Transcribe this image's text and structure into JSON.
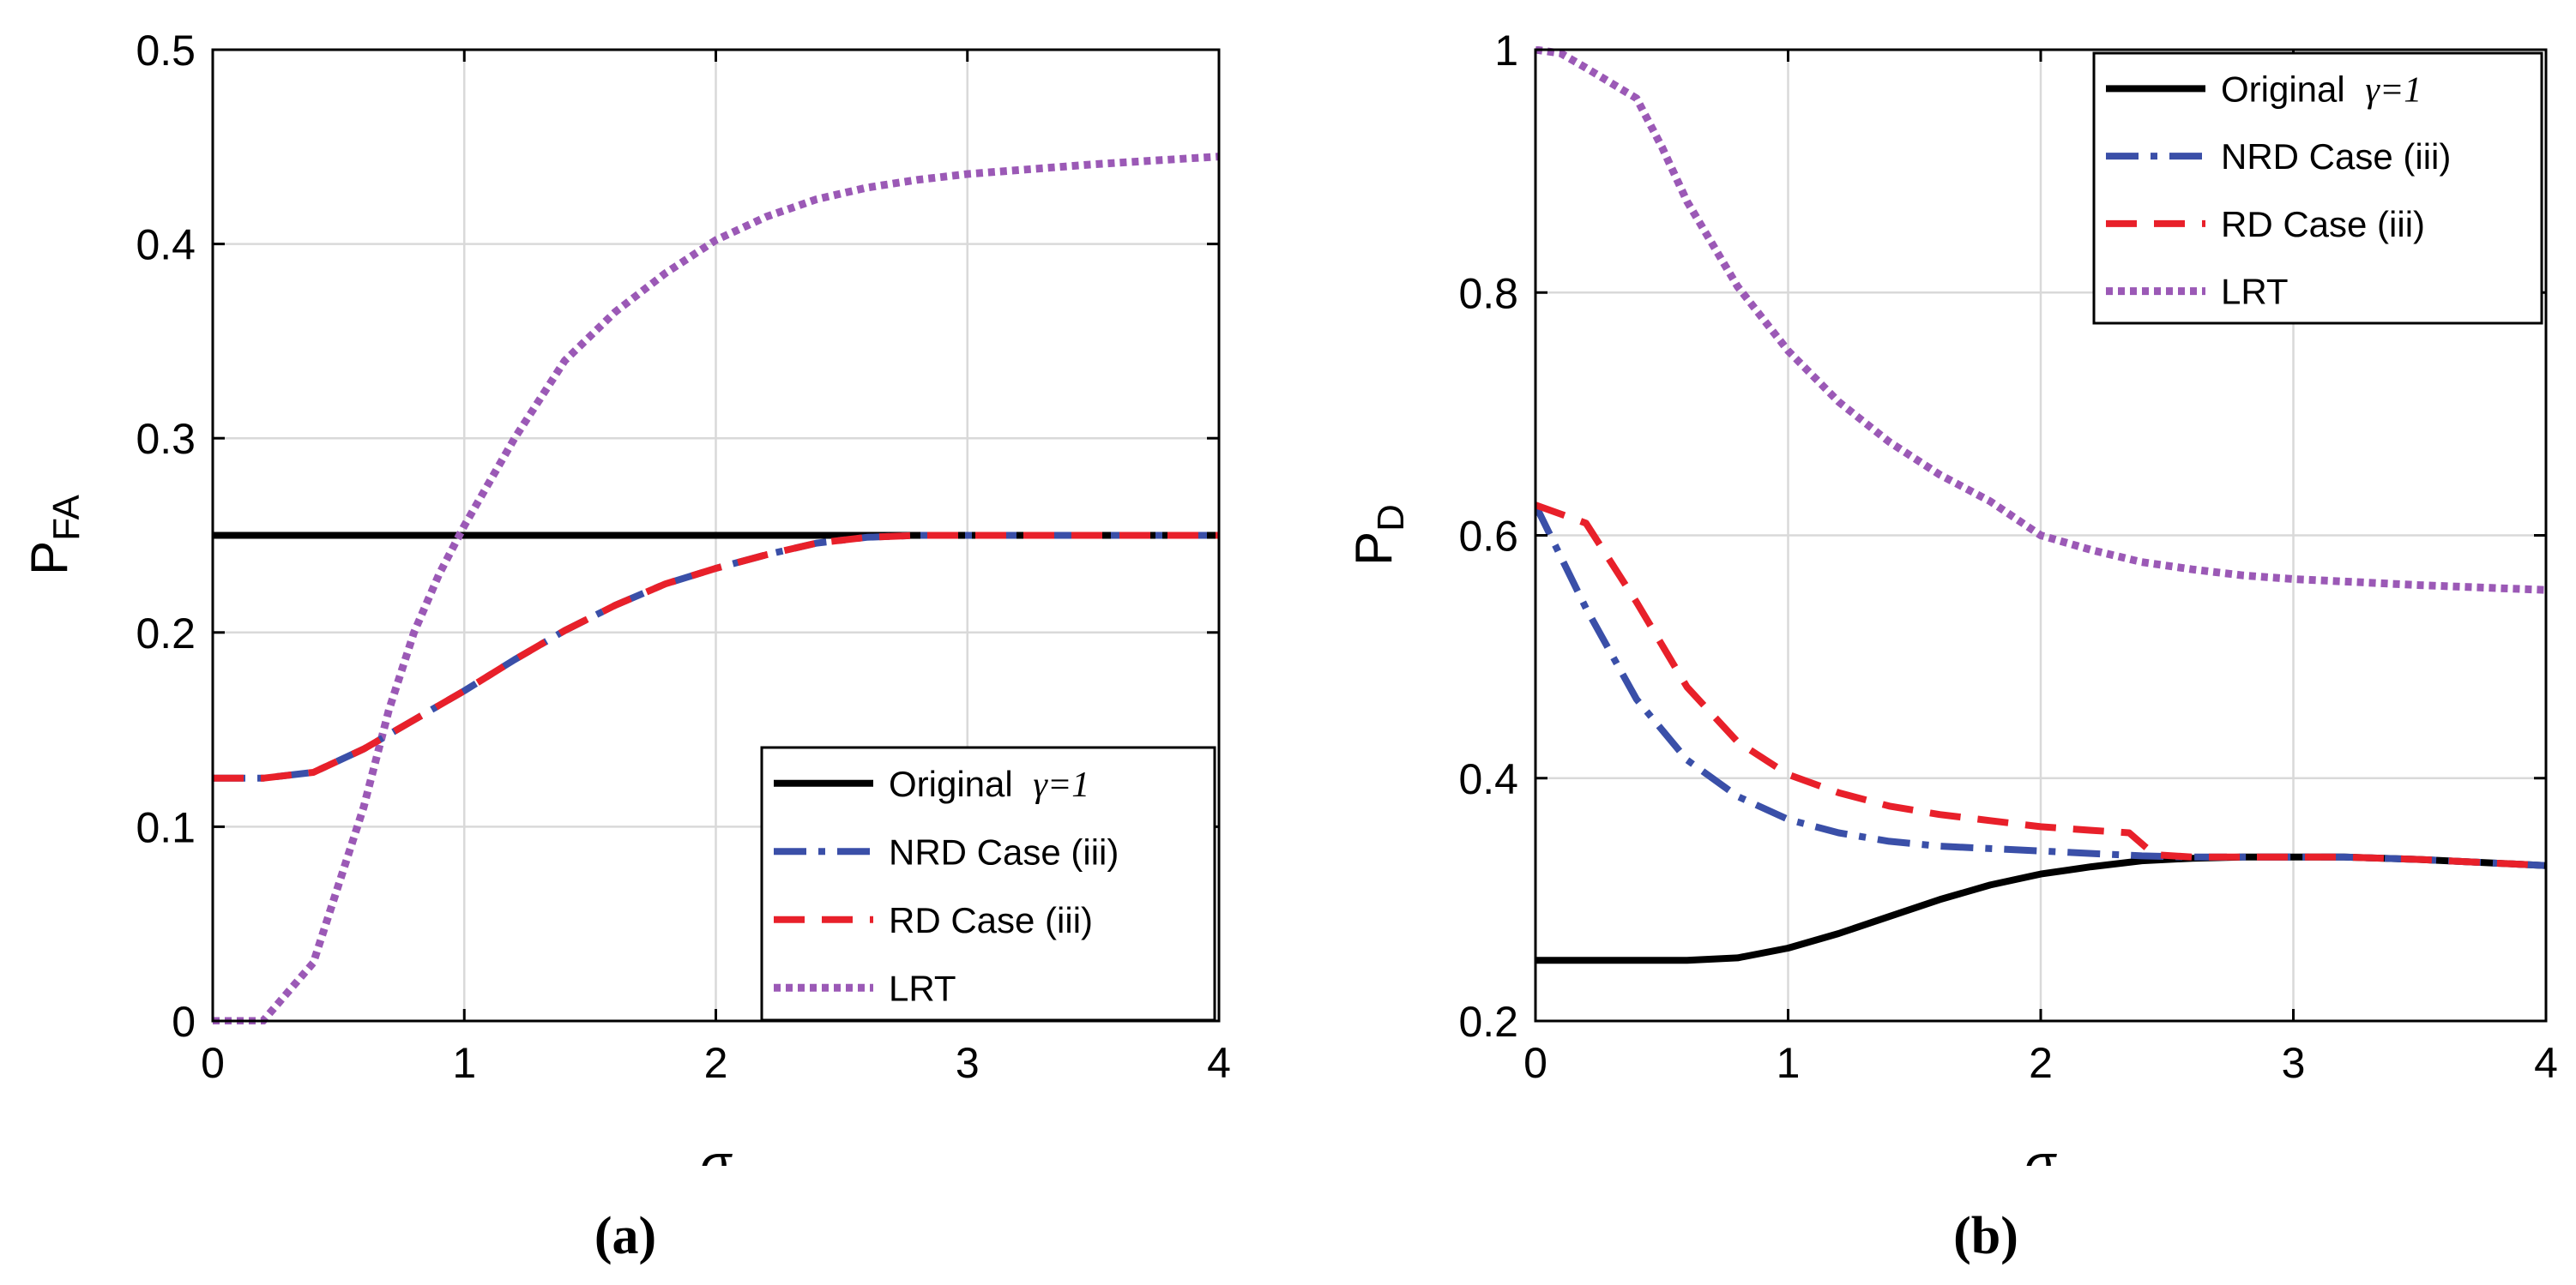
{
  "chart_data": [
    {
      "type": "line",
      "panel_label": "(a)",
      "xlabel": "σ",
      "ylabel_main": "P",
      "ylabel_sub": "FA",
      "xlim": [
        0,
        4
      ],
      "ylim": [
        0,
        0.5
      ],
      "xticks": [
        0,
        1,
        2,
        3,
        4
      ],
      "xtick_labels": [
        "0",
        "1",
        "2",
        "3",
        "4"
      ],
      "yticks": [
        0,
        0.1,
        0.2,
        0.3,
        0.4,
        0.5
      ],
      "ytick_labels": [
        "0",
        "0.1",
        "0.2",
        "0.3",
        "0.4",
        "0.5"
      ],
      "grid": true,
      "legend_position": "bottom-right",
      "series": [
        {
          "name": "Original γ=1",
          "legend_main": "Original ",
          "legend_suffix": "γ=1",
          "color": "#000000",
          "dash": "solid",
          "x": [
            0,
            4
          ],
          "y": [
            0.25,
            0.25
          ]
        },
        {
          "name": "NRD Case (iii)",
          "color": "#3a4fa8",
          "dash": "dashdot",
          "x": [
            0,
            0.2,
            0.4,
            0.6,
            0.8,
            1.0,
            1.2,
            1.4,
            1.6,
            1.8,
            2.0,
            2.2,
            2.4,
            2.6,
            2.8,
            3.0,
            3.5,
            4.0
          ],
          "y": [
            0.125,
            0.125,
            0.128,
            0.14,
            0.155,
            0.17,
            0.186,
            0.201,
            0.214,
            0.225,
            0.233,
            0.24,
            0.246,
            0.249,
            0.25,
            0.25,
            0.25,
            0.25
          ]
        },
        {
          "name": "RD Case (iii)",
          "color": "#e8202a",
          "dash": "dashed",
          "x": [
            0,
            0.2,
            0.4,
            0.6,
            0.8,
            1.0,
            1.2,
            1.4,
            1.6,
            1.8,
            2.0,
            2.2,
            2.4,
            2.6,
            2.8,
            3.0,
            3.5,
            4.0
          ],
          "y": [
            0.125,
            0.125,
            0.128,
            0.14,
            0.155,
            0.17,
            0.186,
            0.201,
            0.214,
            0.225,
            0.233,
            0.24,
            0.246,
            0.249,
            0.25,
            0.25,
            0.25,
            0.25
          ]
        },
        {
          "name": "LRT",
          "color": "#9b59b6",
          "dash": "dotted",
          "x": [
            0,
            0.2,
            0.4,
            0.5,
            0.6,
            0.7,
            0.8,
            0.9,
            1.0,
            1.2,
            1.4,
            1.6,
            1.8,
            2.0,
            2.2,
            2.4,
            2.6,
            2.8,
            3.0,
            3.2,
            3.5,
            4.0
          ],
          "y": [
            0,
            0.0,
            0.03,
            0.07,
            0.11,
            0.16,
            0.2,
            0.23,
            0.255,
            0.3,
            0.34,
            0.365,
            0.385,
            0.402,
            0.414,
            0.423,
            0.429,
            0.433,
            0.436,
            0.438,
            0.441,
            0.445
          ]
        }
      ]
    },
    {
      "type": "line",
      "panel_label": "(b)",
      "xlabel": "σ",
      "ylabel_main": "P",
      "ylabel_sub": "D",
      "xlim": [
        0,
        4
      ],
      "ylim": [
        0.2,
        1.0
      ],
      "xticks": [
        0,
        1,
        2,
        3,
        4
      ],
      "xtick_labels": [
        "0",
        "1",
        "2",
        "3",
        "4"
      ],
      "yticks": [
        0.2,
        0.4,
        0.6,
        0.8,
        1.0
      ],
      "ytick_labels": [
        "0.2",
        "0.4",
        "0.6",
        "0.8",
        "1"
      ],
      "grid": true,
      "legend_position": "top-right",
      "series": [
        {
          "name": "Original γ=1",
          "legend_main": "Original ",
          "legend_suffix": "γ=1",
          "color": "#000000",
          "dash": "solid",
          "x": [
            0,
            0.2,
            0.4,
            0.6,
            0.8,
            1.0,
            1.2,
            1.4,
            1.6,
            1.8,
            2.0,
            2.2,
            2.4,
            2.6,
            2.8,
            3.0,
            3.2,
            3.5,
            4.0
          ],
          "y": [
            0.25,
            0.25,
            0.25,
            0.25,
            0.252,
            0.26,
            0.272,
            0.286,
            0.3,
            0.312,
            0.321,
            0.327,
            0.332,
            0.334,
            0.335,
            0.335,
            0.335,
            0.333,
            0.328
          ]
        },
        {
          "name": "NRD Case (iii)",
          "color": "#3a4fa8",
          "dash": "dashdot",
          "x": [
            0,
            0.2,
            0.4,
            0.6,
            0.8,
            1.0,
            1.2,
            1.4,
            1.6,
            1.8,
            2.0,
            2.2,
            2.4,
            2.6,
            2.8,
            3.0,
            3.2,
            3.5,
            4.0
          ],
          "y": [
            0.625,
            0.54,
            0.465,
            0.415,
            0.385,
            0.366,
            0.355,
            0.348,
            0.344,
            0.342,
            0.34,
            0.338,
            0.336,
            0.335,
            0.335,
            0.335,
            0.335,
            0.333,
            0.328
          ]
        },
        {
          "name": "RD Case (iii)",
          "color": "#e8202a",
          "dash": "dashed",
          "x": [
            0,
            0.2,
            0.4,
            0.6,
            0.8,
            1.0,
            1.2,
            1.4,
            1.6,
            1.8,
            2.0,
            2.2,
            2.35,
            2.45,
            2.6,
            2.8,
            3.0,
            3.2,
            3.5,
            4.0
          ],
          "y": [
            0.625,
            0.61,
            0.545,
            0.475,
            0.43,
            0.403,
            0.388,
            0.377,
            0.37,
            0.365,
            0.36,
            0.357,
            0.355,
            0.337,
            0.335,
            0.335,
            0.335,
            0.335,
            0.333,
            0.328
          ]
        },
        {
          "name": "LRT",
          "color": "#9b59b6",
          "dash": "dotted",
          "x": [
            0,
            0.1,
            0.2,
            0.4,
            0.5,
            0.6,
            0.8,
            1.0,
            1.2,
            1.4,
            1.6,
            1.8,
            2.0,
            2.2,
            2.4,
            2.6,
            2.8,
            3.0,
            3.2,
            3.5,
            4.0
          ],
          "y": [
            1.0,
            0.997,
            0.985,
            0.96,
            0.92,
            0.875,
            0.805,
            0.752,
            0.71,
            0.677,
            0.65,
            0.628,
            0.6,
            0.588,
            0.578,
            0.572,
            0.567,
            0.564,
            0.562,
            0.559,
            0.555
          ]
        }
      ]
    }
  ]
}
